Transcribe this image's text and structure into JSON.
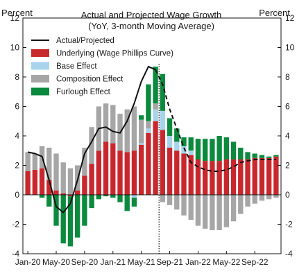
{
  "chart_data": {
    "type": "bar",
    "title": "Actual and Projected Wage Growth",
    "subtitle": "(YoY, 3-month Moving Average)",
    "ylabel_left": "Percent",
    "ylabel_right": "Percent",
    "ylim": [
      -4,
      12
    ],
    "yticks": [
      -4,
      -2,
      0,
      2,
      4,
      6,
      8,
      10,
      12
    ],
    "xtick_labels": [
      {
        "index": 0,
        "label": "Jan-20"
      },
      {
        "index": 4,
        "label": "May-20"
      },
      {
        "index": 8,
        "label": "Sep-20"
      },
      {
        "index": 12,
        "label": "Jan-21"
      },
      {
        "index": 16,
        "label": "May-21"
      },
      {
        "index": 20,
        "label": "Sep-21"
      },
      {
        "index": 24,
        "label": "Jan-22"
      },
      {
        "index": 28,
        "label": "May-22"
      },
      {
        "index": 32,
        "label": "Sep-22"
      }
    ],
    "vline_after_index": 18,
    "categories": [
      "Jan-20",
      "Feb-20",
      "Mar-20",
      "Apr-20",
      "May-20",
      "Jun-20",
      "Jul-20",
      "Aug-20",
      "Sep-20",
      "Oct-20",
      "Nov-20",
      "Dec-20",
      "Jan-21",
      "Feb-21",
      "Mar-21",
      "Apr-21",
      "May-21",
      "Jun-21",
      "Jul-21",
      "Aug-21",
      "Sep-21",
      "Oct-21",
      "Nov-21",
      "Dec-21",
      "Jan-22",
      "Feb-22",
      "Mar-22",
      "Apr-22",
      "May-22",
      "Jun-22",
      "Jul-22",
      "Aug-22",
      "Sep-22",
      "Oct-22",
      "Nov-22",
      "Dec-22"
    ],
    "series": [
      {
        "name": "Underlying (Wage Phillips Curve)",
        "color": "#c8282d",
        "values": [
          1.6,
          1.7,
          1.8,
          1.0,
          0.3,
          0.1,
          -0.1,
          0.3,
          1.3,
          2.1,
          3.0,
          3.6,
          3.5,
          3.0,
          2.9,
          3.0,
          3.4,
          4.2,
          5.0,
          4.4,
          3.2,
          3.0,
          2.8,
          2.7,
          2.4,
          2.3,
          2.3,
          2.3,
          2.4,
          2.4,
          2.4,
          2.4,
          2.5,
          2.5,
          2.5,
          2.6
        ]
      },
      {
        "name": "Base Effect",
        "color": "#a8d3ec",
        "values": [
          0,
          0,
          0,
          0,
          0,
          0,
          0,
          0,
          0,
          0,
          0,
          0,
          0,
          0,
          0,
          -0.2,
          0.1,
          0.3,
          0.8,
          1.3,
          0.8,
          0.6,
          0.5,
          0.3,
          0,
          0,
          0,
          0,
          0,
          0,
          0,
          0,
          0,
          0,
          0,
          0
        ]
      },
      {
        "name": "Composition Effect",
        "color": "#a6a6a6",
        "values": [
          1.3,
          1.1,
          1.5,
          2.2,
          2.5,
          2.1,
          1.8,
          1.7,
          1.9,
          2.5,
          3.0,
          2.6,
          2.6,
          2.5,
          2.9,
          3.0,
          1.6,
          0.5,
          0.4,
          -0.5,
          -0.7,
          -1.0,
          -1.4,
          -1.7,
          -2.1,
          -2.3,
          -2.4,
          -2.4,
          -2.2,
          -1.8,
          -1.3,
          -0.8,
          -0.6,
          -0.4,
          -0.3,
          -0.2
        ]
      },
      {
        "name": "Furlough Effect",
        "color": "#0b8a3e",
        "values": [
          0,
          0,
          -0.2,
          -0.8,
          -2.1,
          -3.3,
          -3.4,
          -2.9,
          -2.1,
          -0.9,
          -0.3,
          -0.1,
          -0.2,
          -0.5,
          -1.1,
          -0.6,
          0.3,
          2.5,
          2.5,
          2.5,
          1.2,
          0.9,
          0.6,
          0.9,
          1.4,
          1.5,
          1.5,
          1.7,
          1.5,
          1.2,
          0.8,
          0.5,
          0.3,
          0.2,
          0.1,
          0.1
        ]
      }
    ],
    "line": {
      "name": "Actual/Projected",
      "color": "#111111",
      "values": [
        2.9,
        2.8,
        2.6,
        1.0,
        -0.8,
        -1.2,
        -0.6,
        1.0,
        2.8,
        3.6,
        4.5,
        4.6,
        4.3,
        4.2,
        5.0,
        6.2,
        7.7,
        8.7,
        8.5,
        7.5,
        5.8,
        4.5,
        3.2,
        2.2,
        1.9,
        1.7,
        1.6,
        1.6,
        1.7,
        1.9,
        2.2,
        2.3,
        2.4,
        2.4,
        2.4,
        2.4
      ],
      "dashed_from_index": 18
    },
    "legend": {
      "position": "top-left",
      "entries": [
        "Actual/Projected",
        "Underlying (Wage Phillips Curve)",
        "Base Effect",
        "Composition Effect",
        "Furlough Effect"
      ]
    }
  }
}
